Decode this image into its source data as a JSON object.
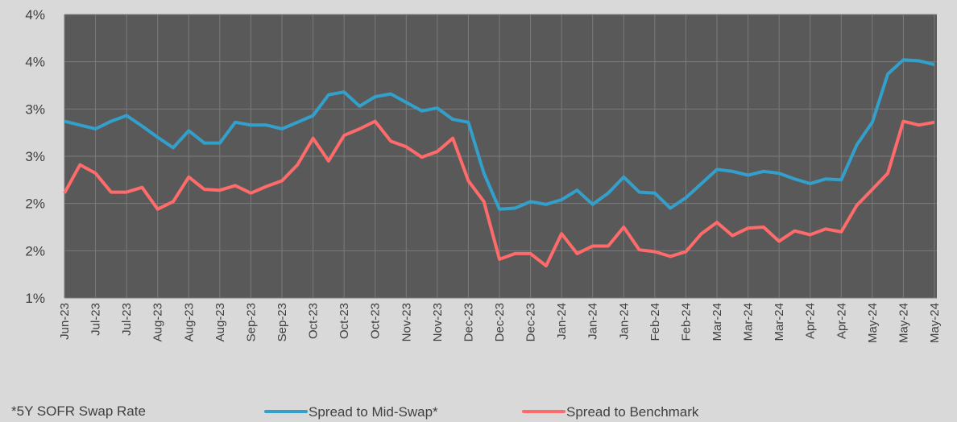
{
  "chart_data": {
    "type": "line",
    "footnote": "*5Y SOFR Swap Rate",
    "categories": [
      "Jun-23",
      null,
      "Jul-23",
      null,
      "Jul-23",
      null,
      "Aug-23",
      null,
      "Aug-23",
      null,
      "Aug-23",
      null,
      "Sep-23",
      null,
      "Sep-23",
      null,
      "Oct-23",
      null,
      "Oct-23",
      null,
      "Oct-23",
      null,
      "Nov-23",
      null,
      "Nov-23",
      null,
      "Dec-23",
      null,
      "Dec-23",
      null,
      "Dec-23",
      null,
      "Jan-24",
      null,
      "Jan-24",
      null,
      "Jan-24",
      null,
      "Feb-24",
      null,
      "Feb-24",
      null,
      "Mar-24",
      null,
      "Mar-24",
      null,
      "Mar-24",
      null,
      "Apr-24",
      null,
      "Apr-24",
      null,
      "May-24",
      null,
      "May-24",
      null,
      "May-24"
    ],
    "series": [
      {
        "name": "Spread to Mid-Swap*",
        "color": "#33a0cc",
        "values": [
          2.87,
          2.83,
          2.79,
          2.87,
          2.93,
          2.82,
          2.7,
          2.59,
          2.77,
          2.64,
          2.64,
          2.86,
          2.83,
          2.83,
          2.79,
          2.86,
          2.93,
          3.15,
          3.18,
          3.03,
          3.13,
          3.16,
          3.07,
          2.98,
          3.01,
          2.89,
          2.86,
          2.32,
          1.94,
          1.95,
          2.02,
          1.99,
          2.04,
          2.14,
          1.99,
          2.11,
          2.28,
          2.12,
          2.11,
          1.95,
          2.06,
          2.21,
          2.36,
          2.34,
          2.3,
          2.34,
          2.32,
          2.26,
          2.21,
          2.26,
          2.25,
          2.62,
          2.86,
          3.37,
          3.52,
          3.51,
          3.47
        ]
      },
      {
        "name": "Spread to Benchmark",
        "color": "#ff6b6b",
        "values": [
          2.11,
          2.41,
          2.32,
          2.12,
          2.12,
          2.17,
          1.94,
          2.02,
          2.28,
          2.15,
          2.14,
          2.19,
          2.11,
          2.18,
          2.24,
          2.41,
          2.69,
          2.45,
          2.72,
          2.79,
          2.87,
          2.66,
          2.6,
          2.49,
          2.55,
          2.69,
          2.24,
          2.02,
          1.41,
          1.47,
          1.47,
          1.34,
          1.68,
          1.47,
          1.55,
          1.55,
          1.75,
          1.51,
          1.49,
          1.44,
          1.49,
          1.68,
          1.8,
          1.66,
          1.74,
          1.75,
          1.6,
          1.71,
          1.67,
          1.73,
          1.7,
          1.98,
          2.15,
          2.32,
          2.87,
          2.83,
          2.86
        ]
      }
    ],
    "ylim": [
      1,
      4
    ],
    "yticks": [
      {
        "value": 1,
        "label": "1%"
      },
      {
        "value": 1.5,
        "label": "2%"
      },
      {
        "value": 2,
        "label": "2%"
      },
      {
        "value": 2.5,
        "label": "3%"
      },
      {
        "value": 3,
        "label": "3%"
      },
      {
        "value": 3.5,
        "label": "4%"
      },
      {
        "value": 4,
        "label": "4%"
      }
    ],
    "grid": true,
    "legend": "bottom"
  }
}
